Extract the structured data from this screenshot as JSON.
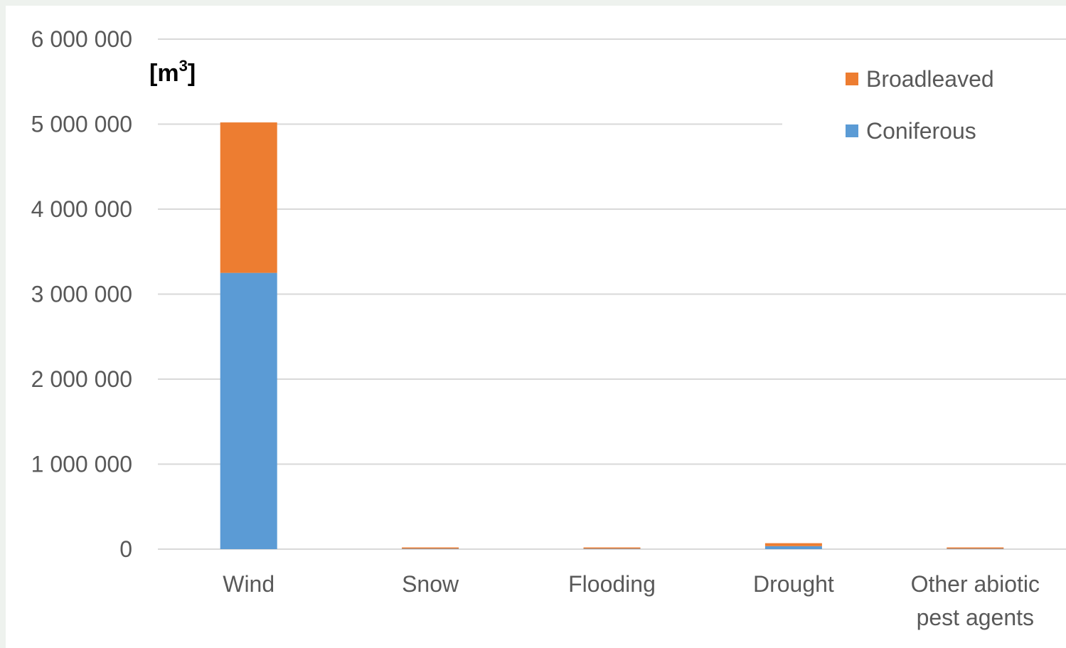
{
  "chart_data": {
    "type": "bar",
    "stacked": true,
    "unit_label": "[m",
    "unit_superscript": "3",
    "unit_label_close": "]",
    "title": "",
    "xlabel": "",
    "ylabel": "",
    "categories": [
      [
        "Wind"
      ],
      [
        "Snow"
      ],
      [
        "Flooding"
      ],
      [
        "Drought"
      ],
      [
        "Other abiotic",
        "pest agents"
      ]
    ],
    "series": [
      {
        "name": "Coniferous",
        "color": "#5b9bd5",
        "values": [
          3250000,
          5000,
          5000,
          35000,
          5000
        ]
      },
      {
        "name": "Broadleaved",
        "color": "#ed7d31",
        "values": [
          1770000,
          15000,
          15000,
          35000,
          15000
        ]
      }
    ],
    "ylim": [
      0,
      6000000
    ],
    "yticks": [
      0,
      1000000,
      2000000,
      3000000,
      4000000,
      5000000,
      6000000
    ],
    "ytick_labels": [
      "0",
      "1 000 000",
      "2 000 000",
      "3 000 000",
      "4 000 000",
      "5 000 000",
      "6 000 000"
    ],
    "grid": true,
    "legend_position": "top-right",
    "legend_order": [
      "Broadleaved",
      "Coniferous"
    ],
    "colors": {
      "gridline": "#d9d9d9",
      "tick_text": "#595959"
    }
  }
}
